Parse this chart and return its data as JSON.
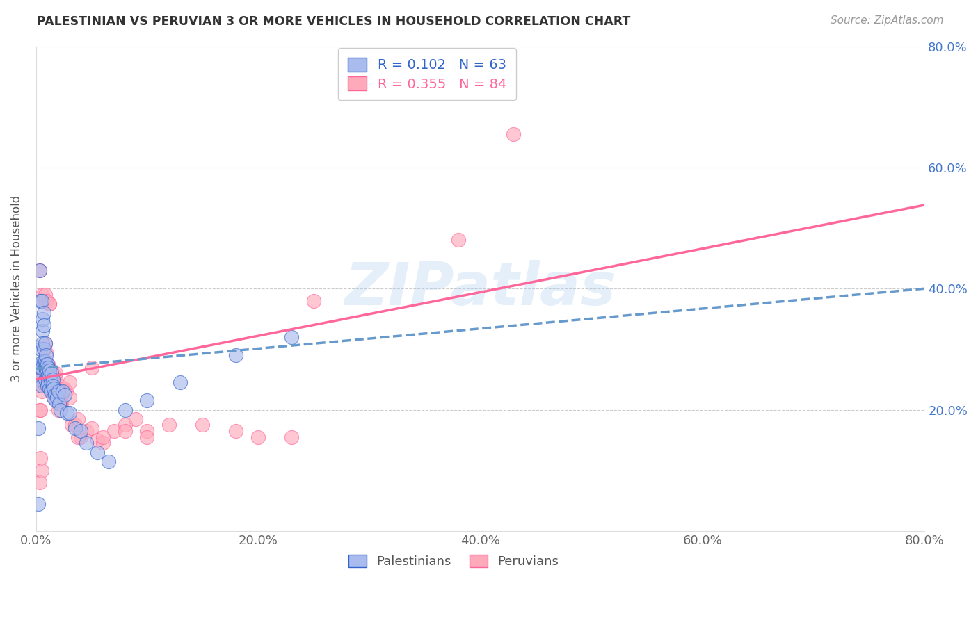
{
  "title": "PALESTINIAN VS PERUVIAN 3 OR MORE VEHICLES IN HOUSEHOLD CORRELATION CHART",
  "source": "Source: ZipAtlas.com",
  "ylabel": "3 or more Vehicles in Household",
  "watermark": "ZIPatlas",
  "xlim": [
    0.0,
    0.8
  ],
  "ylim": [
    0.0,
    0.8
  ],
  "xtick_values": [
    0.0,
    0.2,
    0.4,
    0.6,
    0.8
  ],
  "xtick_labels": [
    "0.0%",
    "20.0%",
    "40.0%",
    "60.0%",
    "80.0%"
  ],
  "ytick_values": [
    0.2,
    0.4,
    0.6,
    0.8
  ],
  "ytick_labels": [
    "20.0%",
    "40.0%",
    "60.0%",
    "80.0%"
  ],
  "blue_fill": "#AABBEE",
  "blue_edge": "#3366CC",
  "pink_fill": "#FFAABB",
  "pink_edge": "#FF6699",
  "blue_line_color": "#6699CC",
  "pink_line_color": "#FF6699",
  "blue_r": 0.102,
  "blue_n": 63,
  "pink_r": 0.355,
  "pink_n": 84,
  "blue_intercept": 0.268,
  "blue_slope": 0.165,
  "pink_intercept": 0.25,
  "pink_slope": 0.36,
  "palestinians_x": [
    0.002,
    0.003,
    0.003,
    0.004,
    0.004,
    0.004,
    0.005,
    0.005,
    0.005,
    0.006,
    0.006,
    0.006,
    0.006,
    0.007,
    0.007,
    0.007,
    0.007,
    0.008,
    0.008,
    0.008,
    0.008,
    0.009,
    0.009,
    0.009,
    0.01,
    0.01,
    0.01,
    0.01,
    0.011,
    0.011,
    0.011,
    0.012,
    0.012,
    0.012,
    0.013,
    0.013,
    0.014,
    0.014,
    0.015,
    0.015,
    0.016,
    0.016,
    0.017,
    0.018,
    0.019,
    0.02,
    0.021,
    0.022,
    0.024,
    0.026,
    0.028,
    0.03,
    0.035,
    0.04,
    0.045,
    0.055,
    0.065,
    0.08,
    0.1,
    0.13,
    0.18,
    0.23,
    0.002
  ],
  "palestinians_y": [
    0.045,
    0.43,
    0.25,
    0.27,
    0.3,
    0.38,
    0.24,
    0.38,
    0.27,
    0.33,
    0.31,
    0.28,
    0.35,
    0.36,
    0.34,
    0.3,
    0.28,
    0.28,
    0.31,
    0.27,
    0.25,
    0.275,
    0.29,
    0.265,
    0.275,
    0.265,
    0.255,
    0.24,
    0.27,
    0.255,
    0.245,
    0.255,
    0.235,
    0.265,
    0.25,
    0.23,
    0.26,
    0.245,
    0.25,
    0.24,
    0.235,
    0.22,
    0.225,
    0.215,
    0.22,
    0.23,
    0.21,
    0.2,
    0.23,
    0.225,
    0.195,
    0.195,
    0.17,
    0.165,
    0.145,
    0.13,
    0.115,
    0.2,
    0.215,
    0.245,
    0.29,
    0.32,
    0.17
  ],
  "peruvians_x": [
    0.002,
    0.003,
    0.003,
    0.004,
    0.004,
    0.005,
    0.005,
    0.005,
    0.006,
    0.006,
    0.006,
    0.007,
    0.007,
    0.007,
    0.008,
    0.008,
    0.008,
    0.009,
    0.009,
    0.009,
    0.01,
    0.01,
    0.01,
    0.01,
    0.011,
    0.011,
    0.011,
    0.012,
    0.012,
    0.012,
    0.013,
    0.013,
    0.014,
    0.014,
    0.015,
    0.015,
    0.016,
    0.016,
    0.017,
    0.018,
    0.018,
    0.019,
    0.02,
    0.021,
    0.022,
    0.023,
    0.025,
    0.027,
    0.03,
    0.032,
    0.035,
    0.038,
    0.04,
    0.045,
    0.05,
    0.055,
    0.06,
    0.07,
    0.08,
    0.09,
    0.1,
    0.12,
    0.15,
    0.18,
    0.2,
    0.23,
    0.003,
    0.004,
    0.006,
    0.008,
    0.01,
    0.012,
    0.015,
    0.018,
    0.022,
    0.03,
    0.038,
    0.05,
    0.06,
    0.08,
    0.1,
    0.25,
    0.38,
    0.43
  ],
  "peruvians_y": [
    0.24,
    0.08,
    0.2,
    0.26,
    0.12,
    0.1,
    0.27,
    0.23,
    0.27,
    0.25,
    0.39,
    0.38,
    0.3,
    0.26,
    0.31,
    0.27,
    0.39,
    0.295,
    0.255,
    0.38,
    0.265,
    0.25,
    0.27,
    0.24,
    0.275,
    0.265,
    0.255,
    0.26,
    0.24,
    0.375,
    0.255,
    0.25,
    0.265,
    0.23,
    0.25,
    0.235,
    0.245,
    0.22,
    0.23,
    0.23,
    0.25,
    0.215,
    0.2,
    0.24,
    0.22,
    0.21,
    0.235,
    0.23,
    0.22,
    0.175,
    0.175,
    0.185,
    0.155,
    0.165,
    0.17,
    0.15,
    0.145,
    0.165,
    0.175,
    0.185,
    0.165,
    0.175,
    0.175,
    0.165,
    0.155,
    0.155,
    0.43,
    0.2,
    0.27,
    0.24,
    0.27,
    0.375,
    0.26,
    0.26,
    0.21,
    0.245,
    0.155,
    0.27,
    0.155,
    0.165,
    0.155,
    0.38,
    0.48,
    0.655
  ]
}
